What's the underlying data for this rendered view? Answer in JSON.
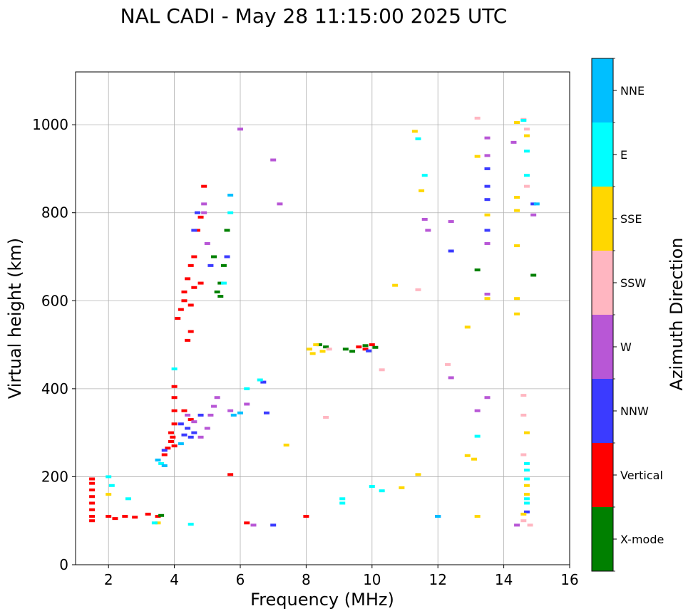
{
  "chart_data": {
    "type": "scatter",
    "title": "NAL CADI - May 28 11:15:00 2025 UTC",
    "xlabel": "Frequency (MHz)",
    "ylabel": "Virtual height (km)",
    "xlim": [
      1,
      16
    ],
    "ylim": [
      0,
      1120
    ],
    "xticks": [
      2,
      4,
      6,
      8,
      10,
      12,
      14,
      16
    ],
    "yticks": [
      0,
      200,
      400,
      600,
      800,
      1000
    ],
    "grid": true,
    "colorbar": {
      "label": "Azimuth Direction",
      "categories": [
        {
          "name": "X-mode",
          "color": "#008000"
        },
        {
          "name": "Vertical",
          "color": "#ff0000"
        },
        {
          "name": "NNW",
          "color": "#3b3bff"
        },
        {
          "name": "W",
          "color": "#b857d6"
        },
        {
          "name": "SSW",
          "color": "#ffb6c1"
        },
        {
          "name": "SSE",
          "color": "#ffd700"
        },
        {
          "name": "E",
          "color": "#00ffff"
        },
        {
          "name": "NNE",
          "color": "#00bfff"
        }
      ]
    },
    "series": [
      {
        "category": "Vertical",
        "points": [
          [
            1.5,
            100
          ],
          [
            1.5,
            110
          ],
          [
            1.5,
            125
          ],
          [
            1.5,
            140
          ],
          [
            1.5,
            155
          ],
          [
            1.5,
            170
          ],
          [
            1.5,
            185
          ],
          [
            1.5,
            195
          ],
          [
            2.0,
            110
          ],
          [
            2.2,
            105
          ],
          [
            2.5,
            110
          ],
          [
            2.8,
            108
          ],
          [
            3.2,
            115
          ],
          [
            3.5,
            110
          ],
          [
            3.7,
            250
          ],
          [
            3.8,
            265
          ],
          [
            3.9,
            280
          ],
          [
            3.9,
            300
          ],
          [
            4.0,
            270
          ],
          [
            4.0,
            320
          ],
          [
            4.0,
            350
          ],
          [
            4.0,
            380
          ],
          [
            4.0,
            405
          ],
          [
            3.95,
            290
          ],
          [
            4.1,
            560
          ],
          [
            4.2,
            580
          ],
          [
            4.3,
            600
          ],
          [
            4.3,
            620
          ],
          [
            4.4,
            650
          ],
          [
            4.4,
            510
          ],
          [
            4.5,
            530
          ],
          [
            4.5,
            590
          ],
          [
            4.5,
            680
          ],
          [
            4.6,
            630
          ],
          [
            4.6,
            700
          ],
          [
            4.7,
            760
          ],
          [
            4.8,
            790
          ],
          [
            4.8,
            640
          ],
          [
            4.9,
            860
          ],
          [
            4.3,
            350
          ],
          [
            4.5,
            330
          ],
          [
            5.7,
            205
          ],
          [
            6.2,
            95
          ],
          [
            8.0,
            110
          ],
          [
            9.6,
            495
          ],
          [
            9.8,
            490
          ],
          [
            10.0,
            500
          ]
        ]
      },
      {
        "category": "X-mode",
        "points": [
          [
            3.6,
            112
          ],
          [
            5.3,
            620
          ],
          [
            5.4,
            640
          ],
          [
            5.5,
            680
          ],
          [
            5.6,
            760
          ],
          [
            5.2,
            700
          ],
          [
            5.4,
            610
          ],
          [
            8.4,
            500
          ],
          [
            8.6,
            495
          ],
          [
            9.2,
            490
          ],
          [
            9.4,
            485
          ],
          [
            9.8,
            498
          ],
          [
            10.1,
            494
          ],
          [
            13.2,
            670
          ],
          [
            14.9,
            658
          ]
        ]
      },
      {
        "category": "NNW",
        "points": [
          [
            3.7,
            260
          ],
          [
            4.3,
            295
          ],
          [
            4.4,
            310
          ],
          [
            4.5,
            290
          ],
          [
            4.6,
            300
          ],
          [
            4.8,
            340
          ],
          [
            4.2,
            320
          ],
          [
            4.7,
            800
          ],
          [
            4.6,
            760
          ],
          [
            5.1,
            680
          ],
          [
            5.6,
            700
          ],
          [
            6.7,
            415
          ],
          [
            6.8,
            345
          ],
          [
            9.9,
            486
          ],
          [
            12.4,
            713
          ],
          [
            12.0,
            110
          ],
          [
            13.5,
            900
          ],
          [
            13.5,
            860
          ],
          [
            13.5,
            830
          ],
          [
            13.5,
            760
          ],
          [
            14.9,
            820
          ],
          [
            14.7,
            120
          ],
          [
            7.0,
            90
          ]
        ]
      },
      {
        "category": "W",
        "points": [
          [
            4.4,
            340
          ],
          [
            4.6,
            325
          ],
          [
            4.8,
            290
          ],
          [
            5.0,
            310
          ],
          [
            5.1,
            340
          ],
          [
            5.2,
            360
          ],
          [
            5.3,
            380
          ],
          [
            5.7,
            350
          ],
          [
            6.2,
            365
          ],
          [
            4.9,
            800
          ],
          [
            4.9,
            820
          ],
          [
            5.0,
            730
          ],
          [
            6.0,
            990
          ],
          [
            7.0,
            920
          ],
          [
            7.2,
            820
          ],
          [
            11.6,
            785
          ],
          [
            11.7,
            760
          ],
          [
            12.4,
            780
          ],
          [
            12.4,
            425
          ],
          [
            13.2,
            350
          ],
          [
            13.5,
            380
          ],
          [
            13.5,
            970
          ],
          [
            13.5,
            930
          ],
          [
            13.5,
            730
          ],
          [
            13.5,
            615
          ],
          [
            14.3,
            960
          ],
          [
            14.9,
            795
          ],
          [
            14.4,
            90
          ],
          [
            6.4,
            90
          ]
        ]
      },
      {
        "category": "SSW",
        "points": [
          [
            8.6,
            335
          ],
          [
            8.7,
            490
          ],
          [
            10.3,
            443
          ],
          [
            11.4,
            625
          ],
          [
            12.3,
            455
          ],
          [
            13.2,
            1015
          ],
          [
            14.6,
            1012
          ],
          [
            14.7,
            990
          ],
          [
            14.7,
            860
          ],
          [
            14.6,
            340
          ],
          [
            14.6,
            385
          ],
          [
            14.6,
            250
          ],
          [
            14.8,
            90
          ],
          [
            14.6,
            100
          ]
        ]
      },
      {
        "category": "SSE",
        "points": [
          [
            8.1,
            490
          ],
          [
            8.2,
            480
          ],
          [
            8.3,
            500
          ],
          [
            8.5,
            485
          ],
          [
            10.9,
            175
          ],
          [
            11.3,
            985
          ],
          [
            11.5,
            850
          ],
          [
            11.4,
            205
          ],
          [
            12.9,
            540
          ],
          [
            12.9,
            248
          ],
          [
            13.1,
            240
          ],
          [
            13.2,
            928
          ],
          [
            13.5,
            795
          ],
          [
            13.5,
            605
          ],
          [
            13.2,
            110
          ],
          [
            14.4,
            1005
          ],
          [
            14.4,
            835
          ],
          [
            14.4,
            805
          ],
          [
            14.4,
            605
          ],
          [
            14.4,
            570
          ],
          [
            14.4,
            725
          ],
          [
            14.7,
            975
          ],
          [
            14.7,
            300
          ],
          [
            14.7,
            180
          ],
          [
            14.7,
            160
          ],
          [
            14.6,
            115
          ],
          [
            7.4,
            272
          ],
          [
            10.7,
            635
          ],
          [
            2.0,
            160
          ],
          [
            3.5,
            95
          ]
        ]
      },
      {
        "category": "E",
        "points": [
          [
            2.0,
            200
          ],
          [
            2.1,
            180
          ],
          [
            2.6,
            150
          ],
          [
            3.4,
            95
          ],
          [
            3.6,
            230
          ],
          [
            4.0,
            445
          ],
          [
            4.5,
            92
          ],
          [
            5.5,
            640
          ],
          [
            5.7,
            800
          ],
          [
            6.2,
            400
          ],
          [
            6.6,
            420
          ],
          [
            9.1,
            140
          ],
          [
            9.1,
            150
          ],
          [
            10.0,
            178
          ],
          [
            10.3,
            168
          ],
          [
            11.4,
            968
          ],
          [
            11.6,
            885
          ],
          [
            13.2,
            292
          ],
          [
            14.6,
            1010
          ],
          [
            14.7,
            940
          ],
          [
            14.7,
            885
          ],
          [
            14.7,
            230
          ],
          [
            14.7,
            215
          ],
          [
            14.7,
            195
          ],
          [
            14.7,
            150
          ],
          [
            14.7,
            140
          ]
        ]
      },
      {
        "category": "NNE",
        "points": [
          [
            3.5,
            238
          ],
          [
            3.7,
            225
          ],
          [
            4.2,
            275
          ],
          [
            5.7,
            840
          ],
          [
            5.8,
            340
          ],
          [
            6.0,
            345
          ],
          [
            12.0,
            110
          ],
          [
            15.0,
            820
          ]
        ]
      }
    ]
  }
}
